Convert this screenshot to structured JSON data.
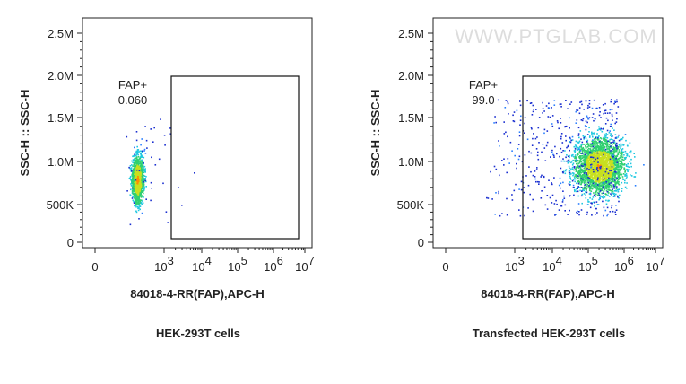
{
  "watermark": "WWW.PTGLAB.COM",
  "panels": [
    {
      "y_label": "SSC-H :: SSC-H",
      "x_label": "84018-4-RR(FAP),APC-H",
      "caption": "HEK-293T cells",
      "gate": {
        "name": "FAP+",
        "value": "0.060"
      },
      "yticks": [
        "2.5M",
        "2.0M",
        "1.5M",
        "1.0M",
        "500K",
        "0"
      ],
      "xticks": [
        {
          "base": "0"
        },
        {
          "base": "10",
          "exp": "3"
        },
        {
          "base": "10",
          "exp": "4"
        },
        {
          "base": "10",
          "exp": "5"
        },
        {
          "base": "10",
          "exp": "6"
        },
        {
          "base": "10",
          "exp": "7"
        }
      ]
    },
    {
      "y_label": "SSC-H :: SSC-H",
      "x_label": "84018-4-RR(FAP),APC-H",
      "caption": "Transfected HEK-293T cells",
      "gate": {
        "name": "FAP+",
        "value": "99.0"
      },
      "yticks": [
        "2.5M",
        "2.0M",
        "1.5M",
        "1.0M",
        "500K",
        "0"
      ],
      "xticks": [
        {
          "base": "0"
        },
        {
          "base": "10",
          "exp": "3"
        },
        {
          "base": "10",
          "exp": "4"
        },
        {
          "base": "10",
          "exp": "5"
        },
        {
          "base": "10",
          "exp": "6"
        },
        {
          "base": "10",
          "exp": "7"
        }
      ]
    }
  ]
}
